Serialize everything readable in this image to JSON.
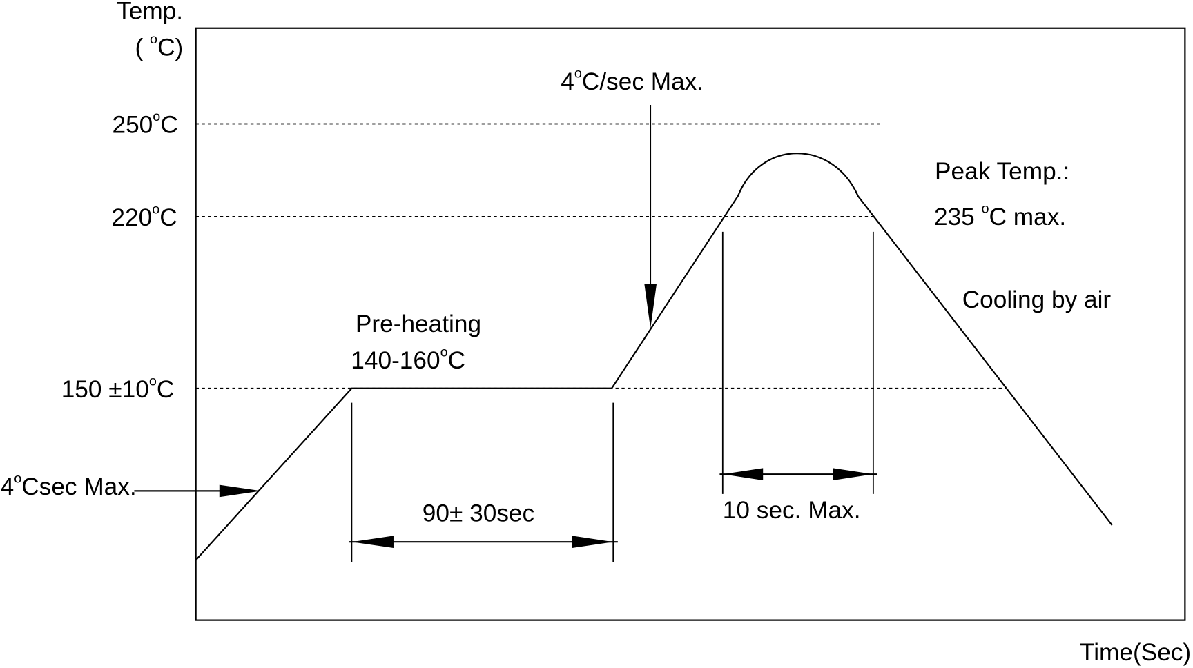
{
  "diagram": {
    "axis": {
      "y_title": "Temp.",
      "y_unit": {
        "pre": "( ",
        "sup": "o",
        "post": "C)"
      },
      "x_title": "Time(Sec)"
    },
    "levels": [
      {
        "pre": "250",
        "sup": "o",
        "post": "C"
      },
      {
        "pre": "220",
        "sup": "o",
        "post": "C"
      },
      {
        "pre": "150 ±10",
        "sup": "o",
        "post": "C"
      }
    ],
    "annotations": {
      "ramp_up_rate": {
        "pre": "4",
        "sup": "o",
        "post": "Csec Max."
      },
      "ramp_to_peak_rate": {
        "pre": "4",
        "sup": "o",
        "post": "C/sec Max."
      },
      "preheat_title": "Pre-heating",
      "preheat_range": {
        "pre": "140-160",
        "sup": "o",
        "post": "C"
      },
      "preheat_time": "90± 30sec",
      "peak_title": "Peak Temp.:",
      "peak_value": {
        "pre": "235 ",
        "sup": "o",
        "post": "C max."
      },
      "peak_time": "10 sec. Max.",
      "cooling": "Cooling by air"
    }
  }
}
